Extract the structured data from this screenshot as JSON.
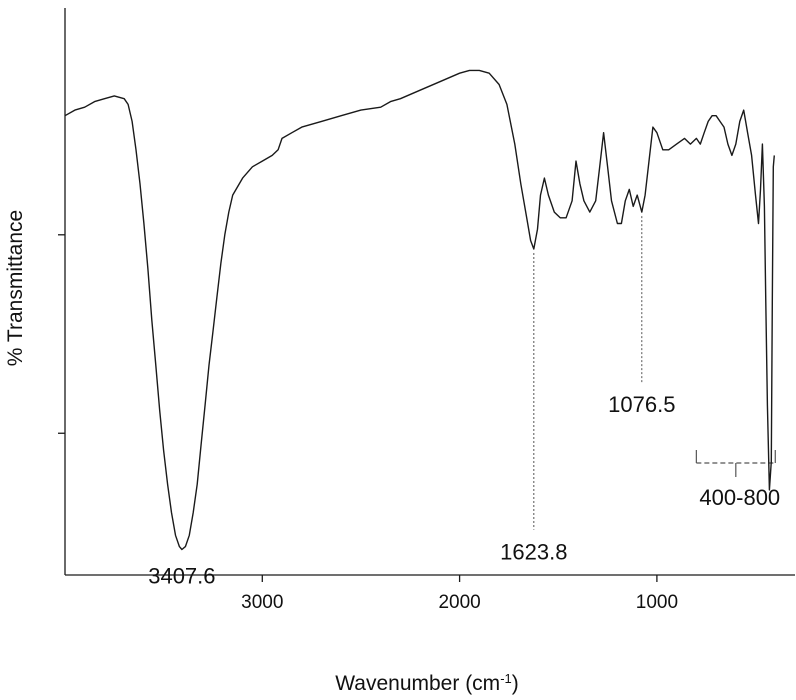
{
  "chart_data": {
    "type": "line",
    "title": "",
    "xlabel": "Wavenumber (cm",
    "xlabel_sup": "-1",
    "xlabel_suffix": ")",
    "ylabel": "% Transmittance",
    "x_reversed": true,
    "xlim": [
      4000,
      300
    ],
    "ylim": [
      0,
      100
    ],
    "grid": false,
    "xticks": [
      3000,
      2000,
      1000
    ],
    "yticks_unlabeled": [
      25,
      60
    ],
    "series": [
      {
        "points": [
          [
            4000,
            81
          ],
          [
            3950,
            82
          ],
          [
            3900,
            82.5
          ],
          [
            3850,
            83.5
          ],
          [
            3800,
            84
          ],
          [
            3750,
            84.5
          ],
          [
            3700,
            84
          ],
          [
            3680,
            83
          ],
          [
            3660,
            80
          ],
          [
            3640,
            75
          ],
          [
            3620,
            69
          ],
          [
            3600,
            62
          ],
          [
            3580,
            54
          ],
          [
            3560,
            45
          ],
          [
            3540,
            37
          ],
          [
            3520,
            29
          ],
          [
            3500,
            22
          ],
          [
            3480,
            16
          ],
          [
            3460,
            11
          ],
          [
            3440,
            7
          ],
          [
            3420,
            5
          ],
          [
            3407.6,
            4.5
          ],
          [
            3390,
            5
          ],
          [
            3370,
            7
          ],
          [
            3350,
            11
          ],
          [
            3330,
            16
          ],
          [
            3310,
            23
          ],
          [
            3290,
            30
          ],
          [
            3270,
            37
          ],
          [
            3250,
            43
          ],
          [
            3230,
            49
          ],
          [
            3210,
            55
          ],
          [
            3190,
            60
          ],
          [
            3170,
            64
          ],
          [
            3150,
            67
          ],
          [
            3100,
            70
          ],
          [
            3050,
            72
          ],
          [
            3000,
            73
          ],
          [
            2950,
            74
          ],
          [
            2920,
            75
          ],
          [
            2900,
            77
          ],
          [
            2850,
            78
          ],
          [
            2800,
            79
          ],
          [
            2700,
            80
          ],
          [
            2600,
            81
          ],
          [
            2500,
            82
          ],
          [
            2400,
            82.5
          ],
          [
            2350,
            83.5
          ],
          [
            2300,
            84
          ],
          [
            2200,
            85.5
          ],
          [
            2100,
            87
          ],
          [
            2000,
            88.5
          ],
          [
            1950,
            89
          ],
          [
            1900,
            89
          ],
          [
            1850,
            88.5
          ],
          [
            1800,
            86.5
          ],
          [
            1760,
            83
          ],
          [
            1720,
            76
          ],
          [
            1690,
            69
          ],
          [
            1660,
            63
          ],
          [
            1640,
            59
          ],
          [
            1623.8,
            57.5
          ],
          [
            1605,
            61
          ],
          [
            1590,
            67
          ],
          [
            1570,
            70
          ],
          [
            1550,
            67
          ],
          [
            1520,
            64
          ],
          [
            1490,
            63
          ],
          [
            1460,
            63
          ],
          [
            1430,
            66
          ],
          [
            1410,
            73
          ],
          [
            1390,
            69
          ],
          [
            1370,
            66
          ],
          [
            1340,
            64
          ],
          [
            1310,
            66
          ],
          [
            1290,
            72
          ],
          [
            1270,
            78
          ],
          [
            1250,
            72
          ],
          [
            1230,
            66
          ],
          [
            1200,
            62
          ],
          [
            1180,
            62
          ],
          [
            1160,
            66
          ],
          [
            1140,
            68
          ],
          [
            1120,
            65
          ],
          [
            1100,
            67
          ],
          [
            1076.5,
            64
          ],
          [
            1060,
            67
          ],
          [
            1040,
            73
          ],
          [
            1020,
            79
          ],
          [
            1000,
            78
          ],
          [
            970,
            75
          ],
          [
            940,
            75
          ],
          [
            900,
            76
          ],
          [
            860,
            77
          ],
          [
            830,
            76
          ],
          [
            800,
            77
          ],
          [
            780,
            76
          ],
          [
            760,
            78
          ],
          [
            740,
            80
          ],
          [
            720,
            81
          ],
          [
            700,
            81
          ],
          [
            680,
            80
          ],
          [
            660,
            79
          ],
          [
            640,
            76
          ],
          [
            620,
            74
          ],
          [
            600,
            76
          ],
          [
            580,
            80
          ],
          [
            560,
            82
          ],
          [
            540,
            78
          ],
          [
            520,
            74
          ],
          [
            500,
            67
          ],
          [
            485,
            62
          ],
          [
            475,
            68
          ],
          [
            465,
            76
          ],
          [
            455,
            65
          ],
          [
            448,
            48
          ],
          [
            440,
            30
          ],
          [
            430,
            15
          ],
          [
            420,
            20
          ],
          [
            415,
            48
          ],
          [
            410,
            72
          ],
          [
            405,
            74
          ]
        ]
      }
    ],
    "annotations": [
      {
        "label": "3407.6",
        "x": 3407.6,
        "y": 4.5,
        "leader": false
      },
      {
        "label": "1623.8",
        "x": 1623.8,
        "y": 57.5,
        "leader": true,
        "leader_to": 8
      },
      {
        "label": "1076.5",
        "x": 1076.5,
        "y": 64,
        "leader": true,
        "leader_to": 34
      }
    ],
    "range_annotation": {
      "label": "400-800",
      "from": 800,
      "to": 400
    }
  }
}
